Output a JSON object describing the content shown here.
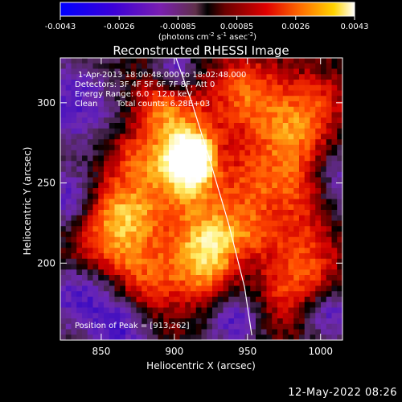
{
  "chart_data": {
    "type": "heatmap",
    "title": "Reconstructed RHESSI Image",
    "xlabel": "Heliocentric X (arcsec)",
    "ylabel": "Heliocentric Y (arcsec)",
    "xlim": [
      822,
      1015
    ],
    "ylim": [
      152,
      328
    ],
    "x_ticks": [
      850,
      900,
      950,
      1000
    ],
    "y_ticks": [
      200,
      250,
      300
    ],
    "colorbar": {
      "range": [
        -0.0043,
        0.0043
      ],
      "tick_labels": [
        "-0.0043",
        "-0.0026",
        "-0.00085",
        "0.00085",
        "0.0026",
        "0.0043"
      ],
      "unit_main": "(photons cm",
      "unit_exp1": "-2",
      "unit_mid1": " s",
      "unit_exp2": "-1",
      "unit_mid2": " asec",
      "unit_exp3": "-2",
      "unit_end": ")"
    },
    "annotations": {
      "time": "1-Apr-2013 18:00:48.000 to 18:02:48.000",
      "detectors": "Detectors: 3F 4F 5F 6F 7F 8F, Att 0",
      "energy": "Energy Range: 6.0 - 12.0 keV",
      "clean": "Clean",
      "counts": "Total counts: 6.28E+03",
      "peak": "Position of Peak = [913,262]"
    },
    "peak": [
      913,
      262
    ],
    "limb_arc": [
      [
        898,
        336
      ],
      [
        912,
        300
      ],
      [
        925,
        262
      ],
      [
        937,
        225
      ],
      [
        948,
        185
      ],
      [
        953,
        155
      ]
    ]
  },
  "footer": {
    "date": "12-May-2022 08:26"
  },
  "colors": {
    "background": "#000000",
    "text": "#ffffff",
    "colormap": [
      "#0000ff",
      "#5a00b0",
      "#8a3d96",
      "#000000",
      "#9a0000",
      "#ff3000",
      "#ff9000",
      "#ffff60",
      "#ffffff"
    ]
  }
}
